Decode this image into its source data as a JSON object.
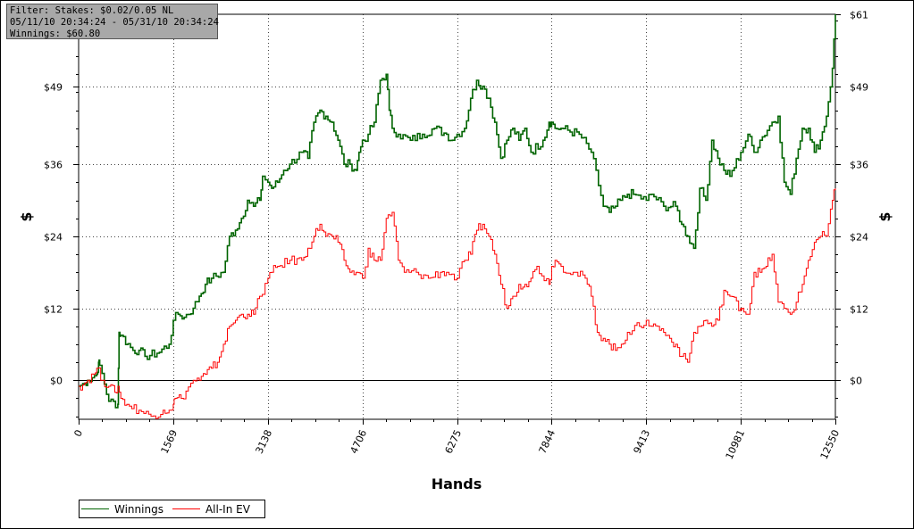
{
  "info_box": {
    "filter": "Filter: Stakes: $0.02/0.05 NL",
    "dates": "05/11/10 20:34:24 - 05/31/10 20:34:24",
    "winnings": "Winnings: $60.80"
  },
  "colors": {
    "winnings": "#006400",
    "allin_ev": "#ff0000",
    "zero_line": "#000000",
    "grid": "#444444"
  },
  "chart_data": {
    "type": "line",
    "title": "",
    "xlabel": "Hands",
    "ylabel_left": "$",
    "ylabel_right": "$",
    "xlim": [
      0,
      12550
    ],
    "ylim": [
      -6.5,
      61
    ],
    "x_ticks": [
      0,
      1569,
      3138,
      4706,
      6275,
      7844,
      9413,
      10981,
      12550
    ],
    "x_tick_labels": [
      "0",
      "1569",
      "3138",
      "4706",
      "6275",
      "7844",
      "9413",
      "10981",
      "12550"
    ],
    "y_ticks": [
      0,
      12,
      24,
      36,
      49,
      61
    ],
    "y_tick_labels_left": [
      "$0",
      "$12",
      "$24",
      "$36",
      "$49",
      ""
    ],
    "y_tick_labels_right": [
      "$0",
      "$12",
      "$24",
      "$36",
      "$49",
      "$61"
    ],
    "grid": true,
    "legend": "bottom-left",
    "series": [
      {
        "name": "Winnings",
        "x": [
          0,
          100,
          150,
          300,
          330,
          350,
          500,
          650,
          670,
          700,
          900,
          1000,
          1100,
          1300,
          1500,
          1569,
          1650,
          1750,
          1900,
          2000,
          2100,
          2200,
          2400,
          2500,
          2600,
          2700,
          2800,
          2900,
          3000,
          3050,
          3138,
          3200,
          3300,
          3400,
          3500,
          3700,
          3800,
          3900,
          4000,
          4100,
          4200,
          4300,
          4400,
          4500,
          4600,
          4650,
          4706,
          4800,
          4900,
          5000,
          5100,
          5150,
          5200,
          5300,
          5500,
          5700,
          5900,
          6100,
          6200,
          6275,
          6400,
          6500,
          6600,
          6700,
          6800,
          6900,
          7000,
          7100,
          7200,
          7300,
          7400,
          7500,
          7700,
          7800,
          7844,
          7900,
          8000,
          8300,
          8500,
          8700,
          8800,
          8900,
          9100,
          9200,
          9413,
          9500,
          9700,
          9900,
          10000,
          10100,
          10200,
          10300,
          10400,
          10500,
          10600,
          10700,
          10800,
          10981,
          11100,
          11200,
          11300,
          11500,
          11600,
          11700,
          11800,
          11900,
          12000,
          12100,
          12200,
          12300,
          12400,
          12500,
          12550
        ],
        "y": [
          -1,
          -0.5,
          0,
          1,
          3,
          2.5,
          -3.5,
          -4,
          8,
          7.5,
          5,
          5,
          4,
          4.5,
          6,
          10,
          11,
          10.5,
          12,
          14,
          16,
          17,
          18,
          24,
          25,
          27,
          30,
          29,
          30,
          34,
          33,
          32,
          33,
          35,
          36,
          38,
          37,
          43,
          45,
          44,
          43,
          40,
          36,
          36,
          35,
          38,
          40,
          41,
          43,
          50,
          51,
          45,
          42,
          41,
          40,
          41,
          42,
          41,
          40,
          41,
          42,
          47,
          50,
          49,
          47,
          43,
          37,
          40,
          42,
          40,
          42,
          38,
          40,
          43,
          43,
          42,
          42,
          41,
          38,
          29,
          28,
          29,
          31,
          31,
          30,
          31,
          29,
          29,
          26,
          24,
          22,
          32,
          30,
          40,
          37,
          35,
          34,
          38,
          41,
          38,
          40,
          43,
          44,
          33,
          31,
          37,
          42,
          42,
          38,
          40,
          44,
          52,
          61
        ]
      },
      {
        "name": "All-In EV",
        "x": [
          0,
          100,
          150,
          250,
          300,
          400,
          500,
          600,
          650,
          700,
          800,
          1000,
          1200,
          1400,
          1500,
          1569,
          1600,
          1700,
          1900,
          2000,
          2100,
          2200,
          2300,
          2400,
          2500,
          2600,
          2700,
          2800,
          2900,
          3000,
          3138,
          3200,
          3300,
          3500,
          3700,
          3800,
          3900,
          4000,
          4100,
          4200,
          4300,
          4400,
          4500,
          4600,
          4706,
          4800,
          4900,
          5000,
          5100,
          5200,
          5300,
          5400,
          5600,
          5800,
          6000,
          6100,
          6275,
          6400,
          6500,
          6600,
          6700,
          6800,
          6900,
          7000,
          7100,
          7200,
          7300,
          7400,
          7500,
          7600,
          7800,
          7844,
          7900,
          8000,
          8200,
          8400,
          8500,
          8600,
          8700,
          8800,
          8900,
          9000,
          9100,
          9300,
          9413,
          9500,
          9600,
          9700,
          9800,
          9900,
          10000,
          10100,
          10200,
          10300,
          10400,
          10500,
          10600,
          10700,
          10800,
          10981,
          11000,
          11100,
          11200,
          11300,
          11400,
          11500,
          11600,
          11700,
          11800,
          11900,
          12000,
          12100,
          12200,
          12300,
          12400,
          12500,
          12550
        ],
        "y": [
          -1,
          -0.5,
          0,
          1,
          2,
          0,
          -1,
          -2,
          -1,
          -3,
          -4,
          -5,
          -6,
          -5,
          -5,
          -4,
          -3,
          -3,
          0,
          0,
          1,
          2,
          3,
          6,
          9,
          10,
          11,
          11,
          11,
          14,
          17,
          18,
          19,
          20,
          20,
          22,
          24,
          26,
          24,
          24,
          23,
          20,
          18,
          18,
          17,
          22,
          20,
          20,
          27,
          28,
          20,
          18,
          18,
          17,
          18,
          18,
          17,
          20,
          21,
          25,
          26,
          24,
          21,
          16,
          12,
          14,
          16,
          16,
          17,
          19,
          16,
          19,
          20,
          19,
          18,
          17,
          14,
          8,
          7,
          6,
          5,
          6,
          8,
          9,
          10,
          9,
          9,
          8,
          7,
          6,
          4,
          3,
          8,
          9,
          10,
          9,
          10,
          15,
          14,
          12,
          12,
          11,
          18,
          18,
          19,
          21,
          13,
          12,
          11,
          13,
          16,
          20,
          23,
          24,
          24,
          30,
          32
        ]
      }
    ]
  }
}
